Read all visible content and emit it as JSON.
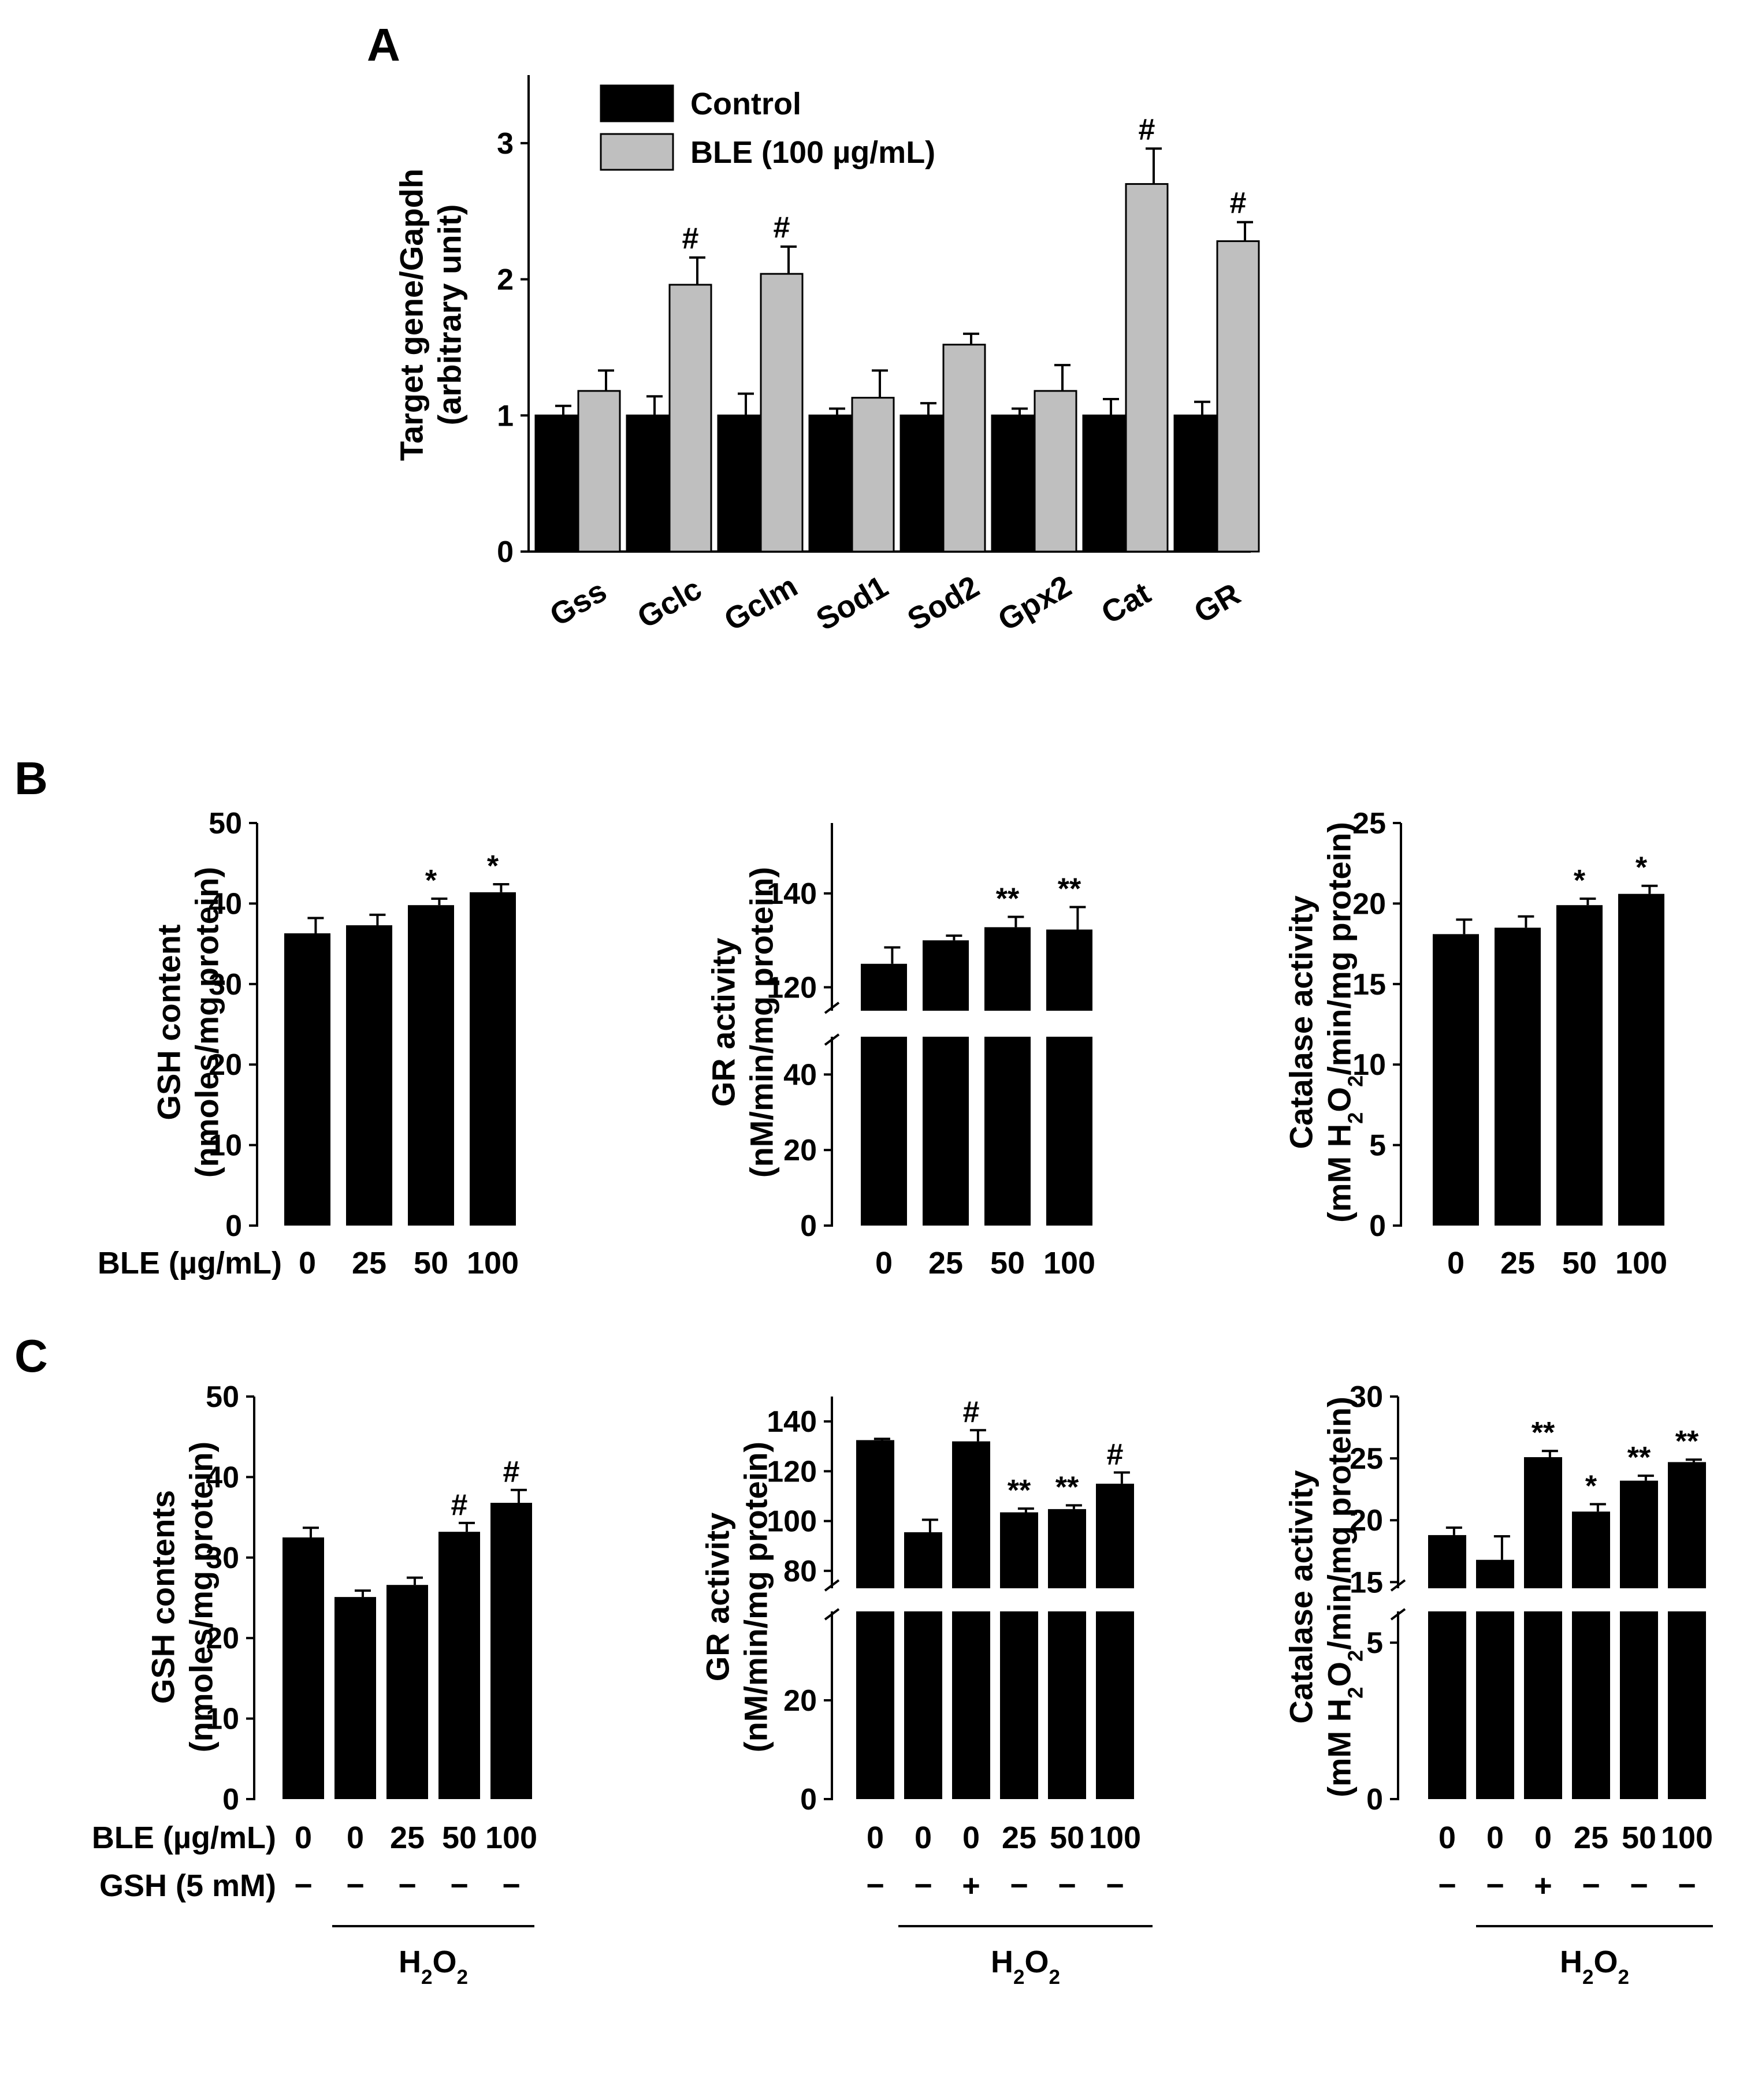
{
  "panel_labels": {
    "A": "A",
    "B": "B",
    "C": "C"
  },
  "chart_data": [
    {
      "id": "A",
      "type": "bar",
      "ylabel_lines": [
        "Target gene/Gapdh",
        "(arbitrary unit)"
      ],
      "categories": [
        "Gss",
        "Gclc",
        "Gclm",
        "Sod1",
        "Sod2",
        "Gpx2",
        "Cat",
        "GR"
      ],
      "ylim": [
        0,
        3.5
      ],
      "yticks": [
        0,
        1,
        2,
        3
      ],
      "legend": [
        "Control",
        "BLE (100 µg/mL)"
      ],
      "series": [
        {
          "name": "Control",
          "color": "#000000",
          "values": [
            1.0,
            1.0,
            1.0,
            1.0,
            1.0,
            1.0,
            1.0,
            1.0
          ],
          "errors": [
            0.07,
            0.14,
            0.16,
            0.05,
            0.09,
            0.05,
            0.12,
            0.1
          ],
          "marks": [
            "",
            "",
            "",
            "",
            "",
            "",
            "",
            ""
          ]
        },
        {
          "name": "BLE (100 µg/mL)",
          "color": "#bfbfbf",
          "values": [
            1.18,
            1.96,
            2.04,
            1.13,
            1.52,
            1.18,
            2.7,
            2.28
          ],
          "errors": [
            0.15,
            0.2,
            0.2,
            0.2,
            0.08,
            0.19,
            0.26,
            0.14
          ],
          "marks": [
            "",
            "#",
            "#",
            "",
            "",
            "",
            "#",
            "#"
          ]
        }
      ]
    },
    {
      "id": "B1",
      "type": "bar",
      "ylabel_lines": [
        "GSH content",
        "(nmoles/mg protein)"
      ],
      "xprefix": "BLE (µg/mL)",
      "categories": [
        "0",
        "25",
        "50",
        "100"
      ],
      "ylim": [
        0,
        50
      ],
      "yticks": [
        0,
        10,
        20,
        30,
        40,
        50
      ],
      "values": [
        36.3,
        37.3,
        39.8,
        41.4
      ],
      "errors": [
        1.9,
        1.3,
        0.8,
        1.0
      ],
      "marks": [
        "",
        "",
        "*",
        "*"
      ]
    },
    {
      "id": "B2",
      "type": "bar",
      "ylabel_lines": [
        "GR activity",
        "(nM/min/mg protein)"
      ],
      "categories": [
        "0",
        "25",
        "50",
        "100"
      ],
      "axis_break": {
        "lower": [
          0,
          50
        ],
        "upper": [
          115,
          155
        ]
      },
      "yticks": [
        0,
        20,
        40,
        120,
        140
      ],
      "values": [
        125,
        130,
        132.8,
        132.3
      ],
      "errors": [
        3.5,
        1.0,
        2.2,
        4.8
      ],
      "marks": [
        "",
        "",
        "**",
        "**"
      ]
    },
    {
      "id": "B3",
      "type": "bar",
      "ylabel_lines": [
        "Catalase activity",
        "(mM H|2|O|2|/min/mg protein)"
      ],
      "categories": [
        "0",
        "25",
        "50",
        "100"
      ],
      "ylim": [
        0,
        25
      ],
      "yticks": [
        0,
        5,
        10,
        15,
        20,
        25
      ],
      "values": [
        18.1,
        18.5,
        19.9,
        20.6
      ],
      "errors": [
        0.9,
        0.7,
        0.4,
        0.5
      ],
      "marks": [
        "",
        "",
        "*",
        "*"
      ]
    },
    {
      "id": "C1",
      "type": "bar",
      "ylabel_lines": [
        "GSH contents",
        "(nmoles/mg protein)"
      ],
      "row1_label": "BLE (µg/mL)",
      "row2_label": "GSH (5 mM)",
      "categories": [
        "0",
        "0",
        "25",
        "50",
        "100"
      ],
      "gsh": [
        "−",
        "−",
        "−",
        "−",
        "−"
      ],
      "group_label": "H|2|O|2",
      "ylim": [
        0,
        50
      ],
      "yticks": [
        0,
        10,
        20,
        30,
        40,
        50
      ],
      "values": [
        32.5,
        25.1,
        26.6,
        33.2,
        36.8
      ],
      "errors": [
        1.2,
        0.8,
        0.9,
        1.1,
        1.6
      ],
      "marks": [
        "",
        "",
        "",
        "#",
        "#"
      ]
    },
    {
      "id": "C2",
      "type": "bar",
      "ylabel_lines": [
        "GR activity",
        "(nM/min/mg protein)"
      ],
      "categories": [
        "0",
        "0",
        "0",
        "25",
        "50",
        "100"
      ],
      "gsh": [
        "−",
        "−",
        "+",
        "−",
        "−",
        "−"
      ],
      "group_label": "H|2|O|2",
      "axis_break": {
        "lower": [
          0,
          38
        ],
        "upper": [
          73,
          150
        ]
      },
      "yticks": [
        0,
        20,
        80,
        100,
        120,
        140
      ],
      "values": [
        132.5,
        95.5,
        132,
        103.5,
        104.8,
        115
      ],
      "errors": [
        0.5,
        5.0,
        4.5,
        1.5,
        1.5,
        4.5
      ],
      "marks": [
        "",
        "",
        "#",
        "**",
        "**",
        "#"
      ]
    },
    {
      "id": "C3",
      "type": "bar",
      "ylabel_lines": [
        "Catalase activity",
        "(mM H|2|O|2|/min/mg protein)"
      ],
      "categories": [
        "0",
        "0",
        "0",
        "25",
        "50",
        "100"
      ],
      "gsh": [
        "−",
        "−",
        "+",
        "−",
        "−",
        "−"
      ],
      "group_label": "H|2|O|2",
      "axis_break": {
        "lower": [
          0,
          6
        ],
        "upper": [
          14.5,
          30
        ]
      },
      "yticks": [
        0,
        5,
        15,
        20,
        25,
        30
      ],
      "values": [
        18.8,
        16.8,
        25.1,
        20.7,
        23.2,
        24.7
      ],
      "errors": [
        0.6,
        1.9,
        0.5,
        0.6,
        0.4,
        0.2
      ],
      "marks": [
        "",
        "",
        "**",
        "*",
        "**",
        "**"
      ]
    }
  ]
}
